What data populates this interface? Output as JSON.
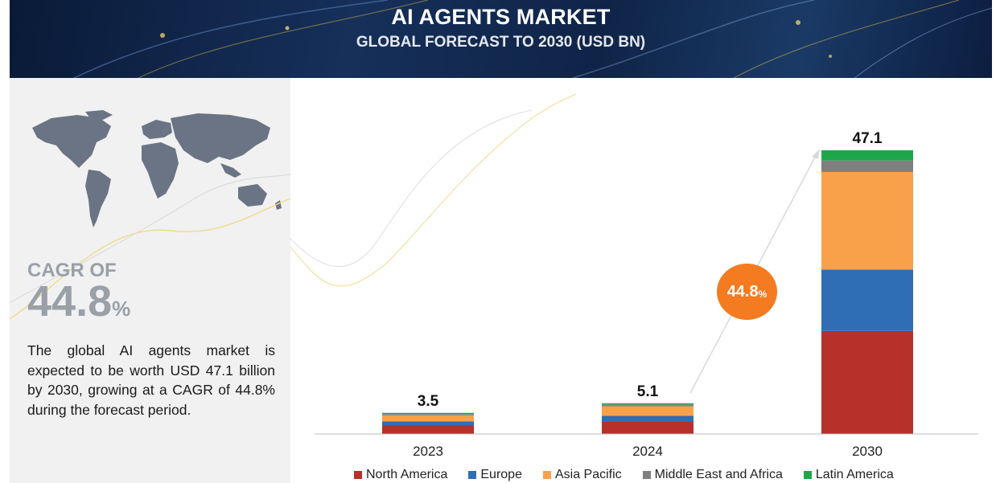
{
  "banner": {
    "title": "AI AGENTS MARKET",
    "subtitle": "GLOBAL FORECAST TO 2030 (USD BN)"
  },
  "left": {
    "cagr_label": "CAGR OF",
    "cagr_value": "44.8",
    "cagr_unit": "%",
    "description": "The global AI agents market is expected to be worth USD 47.1 billion by 2030, growing at a CAGR of 44.8% during the forecast period."
  },
  "bubble": {
    "value": "44.8",
    "unit": "%"
  },
  "colors": {
    "north_america": "#b5312a",
    "europe": "#2f6db5",
    "asia_pacific": "#f9a04a",
    "middle_east_africa": "#7f7f7f",
    "latin_america": "#1fa64a",
    "bubble": "#f47b20"
  },
  "chart_data": {
    "type": "bar",
    "stacked": true,
    "title": "AI AGENTS MARKET — GLOBAL FORECAST TO 2030 (USD BN)",
    "categories": [
      "2023",
      "2024",
      "2030"
    ],
    "totals": [
      3.5,
      5.1,
      47.1
    ],
    "total_labels": [
      "3.5",
      "5.1",
      "47.1"
    ],
    "series": [
      {
        "name": "North America",
        "color": "#b5312a",
        "values": [
          1.4,
          2.0,
          17.1
        ]
      },
      {
        "name": "Europe",
        "color": "#2f6db5",
        "values": [
          0.7,
          1.0,
          10.2
        ]
      },
      {
        "name": "Asia Pacific",
        "color": "#f9a04a",
        "values": [
          1.0,
          1.6,
          16.2
        ]
      },
      {
        "name": "Middle East and Africa",
        "color": "#7f7f7f",
        "values": [
          0.2,
          0.3,
          1.9
        ]
      },
      {
        "name": "Latin America",
        "color": "#1fa64a",
        "values": [
          0.2,
          0.2,
          1.7
        ]
      }
    ],
    "ylim": [
      0,
      47.1
    ],
    "grid": false,
    "legend_position": "bottom",
    "annotation": "44.8%"
  }
}
